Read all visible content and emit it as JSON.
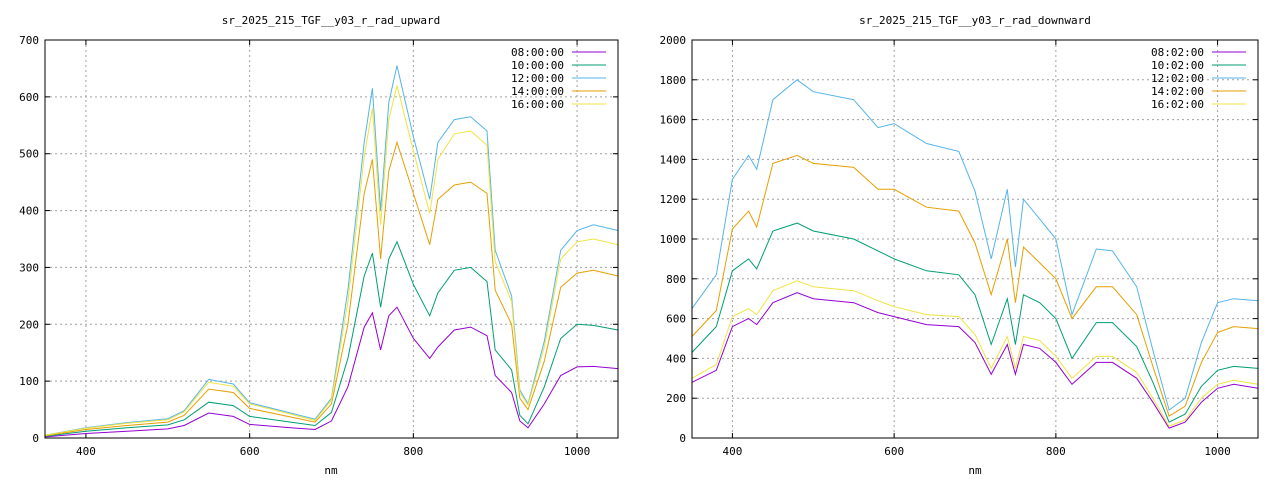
{
  "chart_data": [
    {
      "type": "line",
      "title": "sr_2025_215_TGF__y03_r_rad_upward",
      "xlabel": "nm",
      "ylabel": "",
      "xlim": [
        350,
        1050
      ],
      "ylim": [
        0,
        700
      ],
      "xticks": [
        400,
        600,
        800,
        1000
      ],
      "yticks": [
        0,
        100,
        200,
        300,
        400,
        500,
        600,
        700
      ],
      "grid": true,
      "legend_position": "top-right",
      "x": [
        350,
        400,
        450,
        500,
        520,
        550,
        580,
        600,
        650,
        680,
        700,
        720,
        740,
        750,
        760,
        770,
        780,
        800,
        820,
        830,
        850,
        870,
        890,
        900,
        920,
        930,
        940,
        960,
        980,
        1000,
        1020,
        1050
      ],
      "series": [
        {
          "name": "08:00:00",
          "color": "#9400d3",
          "values": [
            2,
            8,
            12,
            16,
            22,
            44,
            38,
            24,
            18,
            15,
            30,
            90,
            195,
            220,
            155,
            215,
            230,
            175,
            140,
            160,
            190,
            195,
            180,
            110,
            80,
            30,
            18,
            60,
            110,
            125,
            126,
            122
          ]
        },
        {
          "name": "10:00:00",
          "color": "#009e73",
          "values": [
            3,
            12,
            18,
            23,
            32,
            63,
            57,
            38,
            28,
            22,
            45,
            140,
            285,
            325,
            230,
            315,
            345,
            270,
            215,
            255,
            295,
            300,
            275,
            155,
            120,
            40,
            25,
            90,
            175,
            200,
            198,
            190
          ]
        },
        {
          "name": "12:00:00",
          "color": "#56b4e9",
          "values": [
            5,
            18,
            27,
            34,
            48,
            103,
            95,
            62,
            44,
            33,
            70,
            260,
            520,
            615,
            400,
            590,
            655,
            530,
            420,
            520,
            560,
            565,
            540,
            330,
            250,
            85,
            60,
            170,
            330,
            365,
            375,
            365
          ]
        },
        {
          "name": "14:00:00",
          "color": "#e69f00",
          "values": [
            4,
            15,
            22,
            28,
            40,
            86,
            80,
            52,
            37,
            28,
            60,
            200,
            430,
            490,
            315,
            470,
            520,
            430,
            340,
            420,
            445,
            450,
            430,
            260,
            200,
            70,
            50,
            135,
            265,
            290,
            295,
            285
          ]
        },
        {
          "name": "16:00:00",
          "color": "#f0e442",
          "values": [
            5,
            17,
            26,
            32,
            46,
            98,
            91,
            60,
            42,
            31,
            67,
            240,
            495,
            580,
            375,
            560,
            620,
            505,
            395,
            490,
            535,
            540,
            515,
            310,
            240,
            80,
            58,
            160,
            315,
            345,
            350,
            340
          ]
        }
      ]
    },
    {
      "type": "line",
      "title": "sr_2025_215_TGF__y03_r_rad_downward",
      "xlabel": "nm",
      "ylabel": "",
      "xlim": [
        350,
        1050
      ],
      "ylim": [
        0,
        2000
      ],
      "xticks": [
        400,
        600,
        800,
        1000
      ],
      "yticks": [
        0,
        200,
        400,
        600,
        800,
        1000,
        1200,
        1400,
        1600,
        1800,
        2000
      ],
      "grid": true,
      "legend_position": "top-right",
      "x": [
        350,
        380,
        400,
        420,
        430,
        450,
        480,
        500,
        550,
        580,
        600,
        640,
        680,
        700,
        720,
        740,
        750,
        760,
        780,
        800,
        820,
        850,
        870,
        900,
        920,
        940,
        960,
        980,
        1000,
        1020,
        1050
      ],
      "series": [
        {
          "name": "08:02:00",
          "color": "#9400d3",
          "values": [
            280,
            340,
            560,
            600,
            570,
            680,
            730,
            700,
            680,
            630,
            610,
            570,
            560,
            480,
            320,
            470,
            320,
            470,
            450,
            380,
            270,
            380,
            380,
            300,
            180,
            50,
            80,
            180,
            250,
            270,
            250
          ]
        },
        {
          "name": "10:02:00",
          "color": "#009e73",
          "values": [
            430,
            560,
            840,
            900,
            850,
            1040,
            1080,
            1040,
            1000,
            940,
            900,
            840,
            820,
            720,
            470,
            700,
            470,
            720,
            680,
            600,
            400,
            580,
            580,
            460,
            280,
            80,
            120,
            260,
            340,
            360,
            350
          ]
        },
        {
          "name": "12:02:00",
          "color": "#56b4e9",
          "values": [
            650,
            820,
            1300,
            1420,
            1350,
            1700,
            1800,
            1740,
            1700,
            1560,
            1580,
            1480,
            1440,
            1240,
            900,
            1250,
            860,
            1200,
            1100,
            1000,
            620,
            950,
            940,
            760,
            440,
            140,
            200,
            480,
            680,
            700,
            690
          ]
        },
        {
          "name": "14:02:00",
          "color": "#e69f00",
          "values": [
            510,
            640,
            1050,
            1140,
            1060,
            1380,
            1420,
            1380,
            1360,
            1250,
            1250,
            1160,
            1140,
            980,
            720,
            1000,
            680,
            960,
            880,
            800,
            600,
            760,
            760,
            620,
            360,
            110,
            160,
            380,
            530,
            560,
            550
          ]
        },
        {
          "name": "16:02:00",
          "color": "#f0e442",
          "values": [
            300,
            370,
            610,
            650,
            620,
            740,
            790,
            760,
            740,
            690,
            660,
            620,
            610,
            520,
            350,
            510,
            350,
            510,
            490,
            410,
            300,
            410,
            410,
            330,
            200,
            60,
            90,
            200,
            270,
            290,
            270
          ]
        }
      ]
    }
  ]
}
